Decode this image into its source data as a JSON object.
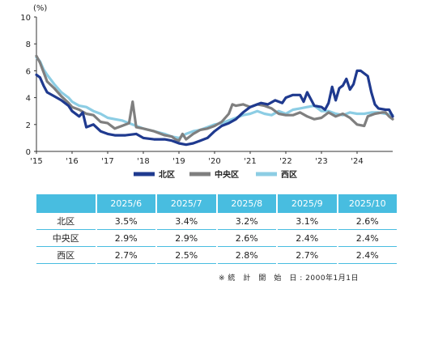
{
  "chart_data": {
    "type": "line",
    "ylabel": "(%)",
    "ylim": [
      0,
      10
    ],
    "yticks": [
      0,
      2,
      4,
      6,
      8,
      10
    ],
    "xlim": [
      2015,
      2025
    ],
    "xticks": [
      {
        "x": 2015,
        "label": "'15"
      },
      {
        "x": 2016,
        "label": "'16"
      },
      {
        "x": 2017,
        "label": "'17"
      },
      {
        "x": 2018,
        "label": "'18"
      },
      {
        "x": 2019,
        "label": "'19"
      },
      {
        "x": 2020,
        "label": "'20"
      },
      {
        "x": 2021,
        "label": "'21"
      },
      {
        "x": 2022,
        "label": "'22"
      },
      {
        "x": 2023,
        "label": "'23"
      },
      {
        "x": 2024,
        "label": "'24"
      }
    ],
    "grid": false,
    "legend_position": "bottom",
    "series": [
      {
        "name": "北区",
        "color": "#1f3a8f",
        "points": [
          [
            2015,
            5.7
          ],
          [
            2015.1,
            5.5
          ],
          [
            2015.2,
            4.9
          ],
          [
            2015.3,
            4.4
          ],
          [
            2015.5,
            4.1
          ],
          [
            2015.7,
            3.8
          ],
          [
            2015.9,
            3.4
          ],
          [
            2016.0,
            3.0
          ],
          [
            2016.2,
            2.6
          ],
          [
            2016.3,
            2.9
          ],
          [
            2016.4,
            1.8
          ],
          [
            2016.6,
            2.0
          ],
          [
            2016.8,
            1.5
          ],
          [
            2017.0,
            1.3
          ],
          [
            2017.2,
            1.2
          ],
          [
            2017.5,
            1.2
          ],
          [
            2017.8,
            1.3
          ],
          [
            2018.0,
            1.0
          ],
          [
            2018.3,
            0.9
          ],
          [
            2018.6,
            0.9
          ],
          [
            2018.8,
            0.8
          ],
          [
            2019.0,
            0.6
          ],
          [
            2019.2,
            0.5
          ],
          [
            2019.4,
            0.6
          ],
          [
            2019.6,
            0.8
          ],
          [
            2019.8,
            1.0
          ],
          [
            2020.0,
            1.5
          ],
          [
            2020.2,
            1.9
          ],
          [
            2020.4,
            2.1
          ],
          [
            2020.6,
            2.4
          ],
          [
            2020.8,
            2.9
          ],
          [
            2021.0,
            3.3
          ],
          [
            2021.3,
            3.6
          ],
          [
            2021.5,
            3.5
          ],
          [
            2021.7,
            3.8
          ],
          [
            2021.9,
            3.6
          ],
          [
            2022.0,
            4.0
          ],
          [
            2022.2,
            4.2
          ],
          [
            2022.4,
            4.2
          ],
          [
            2022.5,
            3.7
          ],
          [
            2022.6,
            4.4
          ],
          [
            2022.8,
            3.4
          ],
          [
            2023.0,
            3.3
          ],
          [
            2023.1,
            3.1
          ],
          [
            2023.2,
            3.6
          ],
          [
            2023.3,
            4.8
          ],
          [
            2023.4,
            3.8
          ],
          [
            2023.5,
            4.7
          ],
          [
            2023.6,
            4.9
          ],
          [
            2023.7,
            5.4
          ],
          [
            2023.8,
            4.6
          ],
          [
            2023.9,
            5.0
          ],
          [
            2024.0,
            6.0
          ],
          [
            2024.1,
            6.0
          ],
          [
            2024.3,
            5.6
          ],
          [
            2024.4,
            4.4
          ],
          [
            2024.5,
            3.5
          ],
          [
            2024.6,
            3.2
          ],
          [
            2024.8,
            3.1
          ],
          [
            2024.9,
            3.1
          ],
          [
            2025.0,
            2.6
          ]
        ]
      },
      {
        "name": "中央区",
        "color": "#7f7f7f",
        "points": [
          [
            2015,
            7.1
          ],
          [
            2015.1,
            6.6
          ],
          [
            2015.2,
            5.9
          ],
          [
            2015.3,
            5.2
          ],
          [
            2015.5,
            4.7
          ],
          [
            2015.7,
            4.1
          ],
          [
            2015.9,
            3.6
          ],
          [
            2016.0,
            3.3
          ],
          [
            2016.2,
            3.1
          ],
          [
            2016.4,
            2.8
          ],
          [
            2016.6,
            2.7
          ],
          [
            2016.8,
            2.2
          ],
          [
            2017.0,
            2.1
          ],
          [
            2017.2,
            1.7
          ],
          [
            2017.4,
            1.9
          ],
          [
            2017.6,
            2.1
          ],
          [
            2017.7,
            3.7
          ],
          [
            2017.8,
            1.8
          ],
          [
            2018.0,
            1.7
          ],
          [
            2018.3,
            1.5
          ],
          [
            2018.6,
            1.2
          ],
          [
            2018.8,
            1.1
          ],
          [
            2018.9,
            0.9
          ],
          [
            2019.0,
            0.8
          ],
          [
            2019.1,
            1.3
          ],
          [
            2019.2,
            0.9
          ],
          [
            2019.4,
            1.3
          ],
          [
            2019.6,
            1.6
          ],
          [
            2019.8,
            1.7
          ],
          [
            2020.0,
            1.9
          ],
          [
            2020.2,
            2.2
          ],
          [
            2020.4,
            2.8
          ],
          [
            2020.5,
            3.5
          ],
          [
            2020.6,
            3.4
          ],
          [
            2020.8,
            3.5
          ],
          [
            2021.0,
            3.3
          ],
          [
            2021.2,
            3.5
          ],
          [
            2021.4,
            3.4
          ],
          [
            2021.6,
            3.2
          ],
          [
            2021.8,
            2.8
          ],
          [
            2022.0,
            2.7
          ],
          [
            2022.2,
            2.7
          ],
          [
            2022.4,
            2.9
          ],
          [
            2022.6,
            2.6
          ],
          [
            2022.8,
            2.4
          ],
          [
            2023.0,
            2.5
          ],
          [
            2023.2,
            2.9
          ],
          [
            2023.4,
            2.6
          ],
          [
            2023.6,
            2.8
          ],
          [
            2023.8,
            2.5
          ],
          [
            2024.0,
            2.0
          ],
          [
            2024.2,
            1.9
          ],
          [
            2024.3,
            2.6
          ],
          [
            2024.5,
            2.8
          ],
          [
            2024.7,
            2.9
          ],
          [
            2024.8,
            2.9
          ],
          [
            2024.9,
            2.6
          ],
          [
            2025.0,
            2.4
          ]
        ]
      },
      {
        "name": "西区",
        "color": "#8ccde4",
        "points": [
          [
            2015,
            7.0
          ],
          [
            2015.1,
            6.7
          ],
          [
            2015.2,
            6.1
          ],
          [
            2015.3,
            5.7
          ],
          [
            2015.5,
            5.0
          ],
          [
            2015.7,
            4.4
          ],
          [
            2015.9,
            4.0
          ],
          [
            2016.0,
            3.7
          ],
          [
            2016.2,
            3.4
          ],
          [
            2016.4,
            3.3
          ],
          [
            2016.6,
            3.0
          ],
          [
            2016.8,
            2.8
          ],
          [
            2017.0,
            2.5
          ],
          [
            2017.2,
            2.4
          ],
          [
            2017.4,
            2.3
          ],
          [
            2017.6,
            2.1
          ],
          [
            2017.8,
            1.9
          ],
          [
            2018.0,
            1.7
          ],
          [
            2018.3,
            1.5
          ],
          [
            2018.6,
            1.3
          ],
          [
            2018.8,
            1.1
          ],
          [
            2019.0,
            1.0
          ],
          [
            2019.2,
            1.3
          ],
          [
            2019.4,
            1.5
          ],
          [
            2019.6,
            1.6
          ],
          [
            2019.8,
            1.8
          ],
          [
            2020.0,
            2.0
          ],
          [
            2020.2,
            2.1
          ],
          [
            2020.4,
            2.3
          ],
          [
            2020.6,
            2.5
          ],
          [
            2020.8,
            2.7
          ],
          [
            2021.0,
            2.8
          ],
          [
            2021.2,
            3.0
          ],
          [
            2021.4,
            2.8
          ],
          [
            2021.6,
            2.7
          ],
          [
            2021.8,
            3.0
          ],
          [
            2022.0,
            2.8
          ],
          [
            2022.2,
            3.1
          ],
          [
            2022.4,
            3.2
          ],
          [
            2022.6,
            3.3
          ],
          [
            2022.8,
            3.4
          ],
          [
            2023.0,
            3.0
          ],
          [
            2023.2,
            3.0
          ],
          [
            2023.4,
            2.8
          ],
          [
            2023.6,
            2.7
          ],
          [
            2023.8,
            2.9
          ],
          [
            2024.0,
            2.8
          ],
          [
            2024.2,
            2.8
          ],
          [
            2024.4,
            2.9
          ],
          [
            2024.6,
            2.9
          ],
          [
            2024.8,
            2.8
          ],
          [
            2025.0,
            2.7
          ]
        ]
      }
    ]
  },
  "table": {
    "columns": [
      "2025/6",
      "2025/7",
      "2025/8",
      "2025/9",
      "2025/10"
    ],
    "rows": [
      {
        "label": "北区",
        "values": [
          "3.5%",
          "3.4%",
          "3.2%",
          "3.1%",
          "2.6%"
        ]
      },
      {
        "label": "中央区",
        "values": [
          "2.9%",
          "2.9%",
          "2.6%",
          "2.4%",
          "2.4%"
        ]
      },
      {
        "label": "西区",
        "values": [
          "2.7%",
          "2.5%",
          "2.8%",
          "2.7%",
          "2.4%"
        ]
      }
    ]
  },
  "note": "※ 統　計　開　始　日 : 2000年1月1日"
}
